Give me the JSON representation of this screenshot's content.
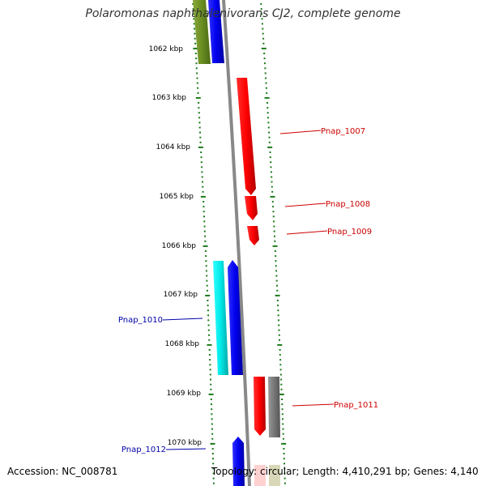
{
  "title": "Polaromonas naphthalenivorans CJ2, complete genome",
  "accession": "Accession: NC_008781",
  "summary": "Topology: circular; Length: 4,410,291 bp; Genes: 4,140",
  "colors": {
    "tick": "#1a7a1a",
    "backbone": "#808080",
    "forward_label": "#cc0000",
    "reverse_label": "#0000aa",
    "red": "#ff0000",
    "blue": "#0000ee",
    "cyan": "#00e5e5",
    "olive": "#6b8e23",
    "grey": "#777777"
  },
  "scale_labels": [
    {
      "text": "1062 kbp",
      "kbp": 1062
    },
    {
      "text": "1063 kbp",
      "kbp": 1063
    },
    {
      "text": "1064 kbp",
      "kbp": 1064
    },
    {
      "text": "1065 kbp",
      "kbp": 1065
    },
    {
      "text": "1066 kbp",
      "kbp": 1066
    },
    {
      "text": "1067 kbp",
      "kbp": 1067
    },
    {
      "text": "1068 kbp",
      "kbp": 1068
    },
    {
      "text": "1069 kbp",
      "kbp": 1069
    },
    {
      "text": "1070 kbp",
      "kbp": 1070
    }
  ],
  "genes": [
    {
      "label": "Pnap_1007",
      "strand": "forward"
    },
    {
      "label": "Pnap_1008",
      "strand": "forward"
    },
    {
      "label": "Pnap_1009",
      "strand": "forward"
    },
    {
      "label": "Pnap_1010",
      "strand": "reverse"
    },
    {
      "label": "Pnap_1011",
      "strand": "forward"
    },
    {
      "label": "Pnap_1012",
      "strand": "reverse"
    }
  ]
}
